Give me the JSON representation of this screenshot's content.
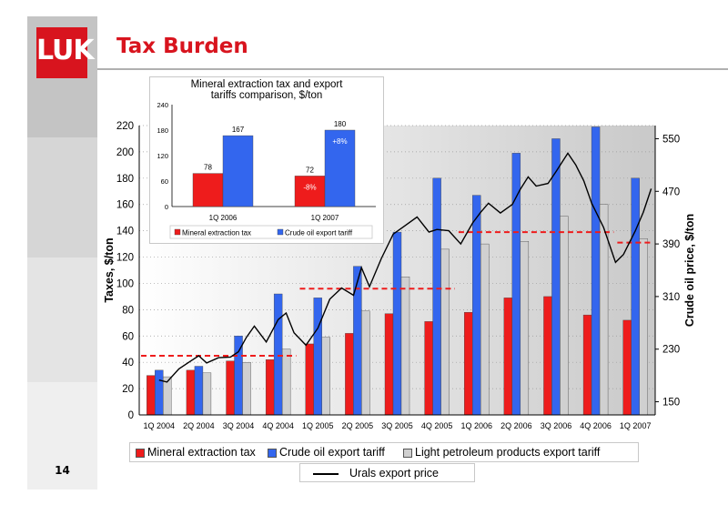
{
  "slide": {
    "title": "Tax Burden",
    "page_number": "14"
  },
  "logo": {
    "text": "LUK"
  },
  "colors": {
    "brand_red": "#d8141e",
    "bar_red": "#ee1c1c",
    "bar_blue": "#3366ee",
    "bar_grey": "#d0d0d0",
    "price_line": "#000000",
    "avg_dash": "#ee1c1c"
  },
  "chart_data": [
    {
      "type": "bar",
      "ylabel": "Taxes, $/ton",
      "y2label": "Crude oil price, $/ton",
      "ylim": [
        0,
        220
      ],
      "yticks": [
        0,
        20,
        40,
        60,
        80,
        100,
        120,
        140,
        160,
        180,
        200,
        220
      ],
      "y2lim": [
        130,
        570
      ],
      "y2ticks": [
        150,
        230,
        310,
        390,
        470,
        550
      ],
      "grid": true,
      "categories": [
        "1Q 2004",
        "2Q 2004",
        "3Q 2004",
        "4Q 2004",
        "1Q 2005",
        "2Q 2005",
        "3Q 2005",
        "4Q 2005",
        "1Q 2006",
        "2Q 2006",
        "3Q 2006",
        "4Q 2006",
        "1Q 2007"
      ],
      "series": [
        {
          "name": "Mineral extraction tax",
          "color": "#ee1c1c",
          "values": [
            30,
            34,
            41,
            42,
            54,
            62,
            77,
            71,
            78,
            89,
            90,
            76,
            72
          ]
        },
        {
          "name": "Crude oil export tariff",
          "color": "#3366ee",
          "values": [
            34,
            37,
            60,
            92,
            89,
            113,
            139,
            180,
            167,
            199,
            210,
            219,
            180
          ]
        },
        {
          "name": "Light petroleum products export tariff",
          "color": "#d0d0d0",
          "values": [
            29,
            32,
            40,
            50,
            59,
            79,
            105,
            126,
            130,
            132,
            151,
            160,
            134
          ]
        }
      ],
      "line": {
        "name": "Urals export price",
        "axis": "secondary",
        "points": [
          [
            0,
            183
          ],
          [
            0.2,
            180
          ],
          [
            0.5,
            200
          ],
          [
            0.8,
            212
          ],
          [
            1,
            220
          ],
          [
            1.2,
            209
          ],
          [
            1.5,
            217
          ],
          [
            1.8,
            218
          ],
          [
            2,
            226
          ],
          [
            2.2,
            248
          ],
          [
            2.4,
            265
          ],
          [
            2.7,
            241
          ],
          [
            3,
            275
          ],
          [
            3.2,
            285
          ],
          [
            3.4,
            255
          ],
          [
            3.7,
            236
          ],
          [
            4,
            262
          ],
          [
            4.3,
            306
          ],
          [
            4.6,
            323
          ],
          [
            4.9,
            312
          ],
          [
            5.1,
            354
          ],
          [
            5.3,
            325
          ],
          [
            5.6,
            368
          ],
          [
            5.9,
            405
          ],
          [
            6.2,
            418
          ],
          [
            6.5,
            431
          ],
          [
            6.8,
            408
          ],
          [
            7,
            412
          ],
          [
            7.3,
            410
          ],
          [
            7.6,
            390
          ],
          [
            7.9,
            422
          ],
          [
            8.1,
            438
          ],
          [
            8.3,
            452
          ],
          [
            8.6,
            437
          ],
          [
            8.9,
            450
          ],
          [
            9.1,
            473
          ],
          [
            9.3,
            492
          ],
          [
            9.5,
            478
          ],
          [
            9.8,
            482
          ],
          [
            10,
            500
          ],
          [
            10.3,
            528
          ],
          [
            10.5,
            510
          ],
          [
            10.7,
            486
          ],
          [
            10.9,
            452
          ],
          [
            11.2,
            415
          ],
          [
            11.5,
            362
          ],
          [
            11.7,
            374
          ],
          [
            12,
            410
          ],
          [
            12.2,
            438
          ],
          [
            12.4,
            474
          ]
        ]
      },
      "averages": [
        {
          "from": 0,
          "to": 3,
          "value": 45
        },
        {
          "from": 4,
          "to": 7,
          "value": 96
        },
        {
          "from": 8,
          "to": 11,
          "value": 139
        },
        {
          "from": 12,
          "to": 12,
          "value": 131
        }
      ],
      "legend": [
        "Mineral extraction tax",
        "Crude oil export tariff",
        "Light petroleum products export tariff",
        "Urals export price"
      ],
      "legend_position": "bottom"
    },
    {
      "type": "bar",
      "title": "Mineral extraction tax and export tariffs comparison, $/ton",
      "ylim": [
        0,
        240
      ],
      "yticks": [
        0,
        60,
        120,
        180,
        240
      ],
      "categories": [
        "1Q 2006",
        "1Q 2007"
      ],
      "series": [
        {
          "name": "Mineral extraction tax",
          "color": "#ee1c1c",
          "values": [
            78,
            72
          ]
        },
        {
          "name": "Crude oil export tariff",
          "color": "#3366ee",
          "values": [
            167,
            180
          ]
        }
      ],
      "annotations": [
        {
          "category": "1Q 2007",
          "series": "Mineral extraction tax",
          "text": "-8%"
        },
        {
          "category": "1Q 2007",
          "series": "Crude oil export tariff",
          "text": "+8%"
        }
      ],
      "legend_position": "bottom"
    }
  ]
}
